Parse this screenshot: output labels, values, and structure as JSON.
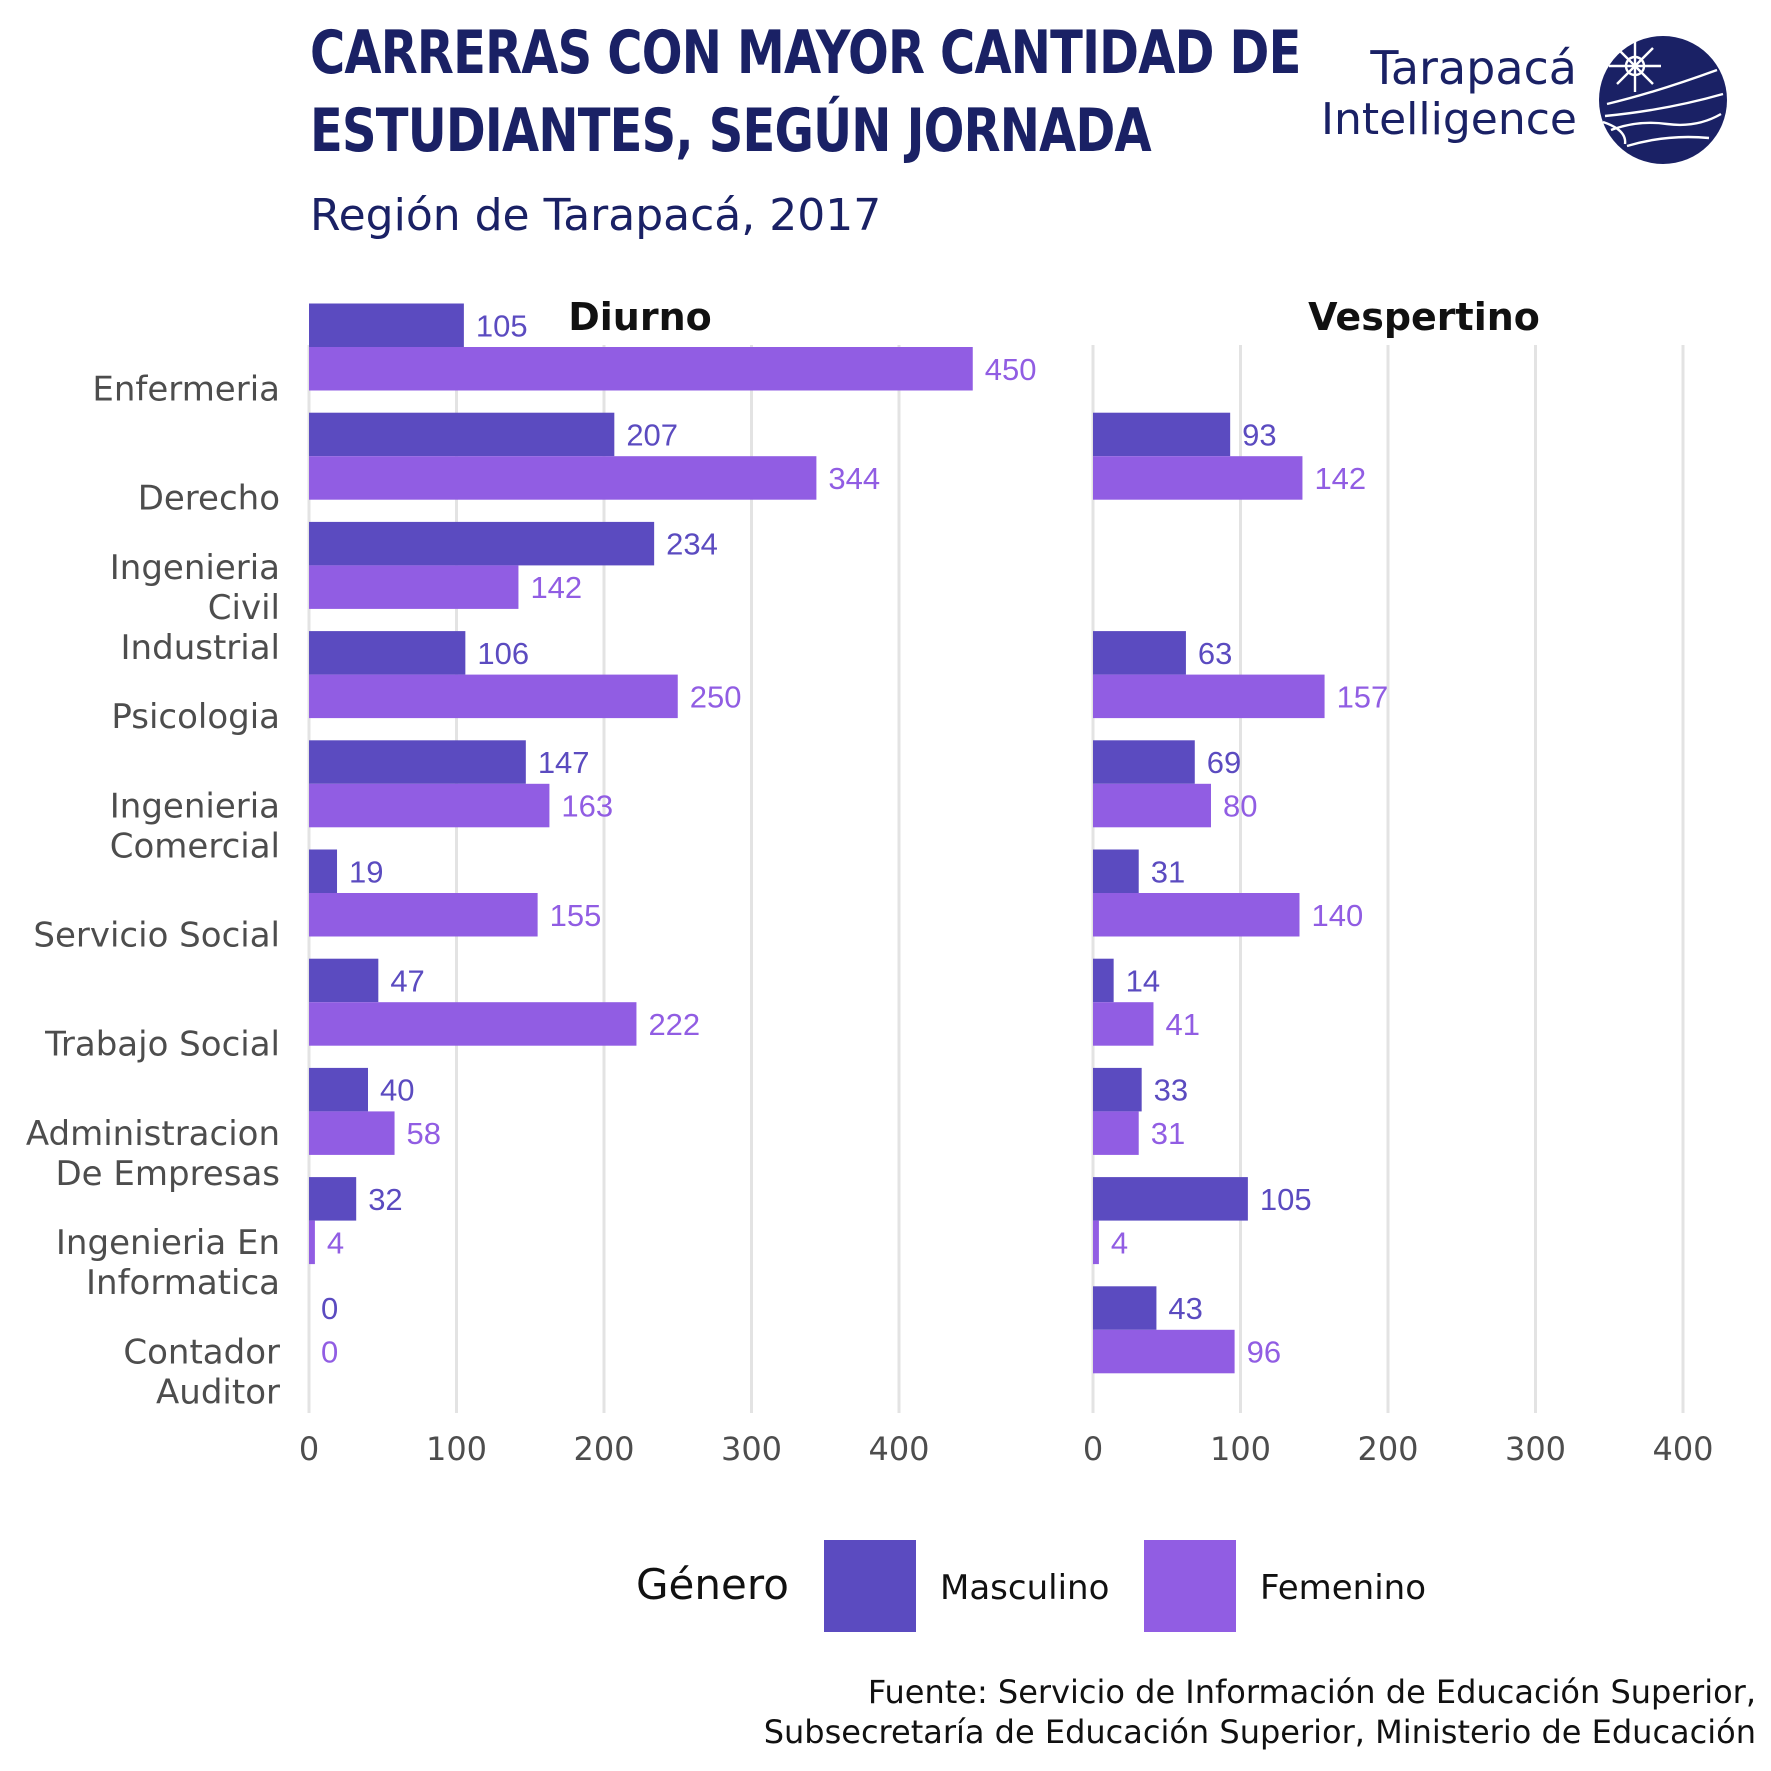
{
  "header": {
    "title_line_1": "CARRERAS CON MAYOR CANTIDAD DE",
    "title_line_2": "ESTUDIANTES, SEGÚN JORNADA",
    "subtitle": "Región de Tarapacá, 2017"
  },
  "brand": {
    "line_1": "Tarapacá",
    "line_2": "Intelligence",
    "color": "#1a2165"
  },
  "colors": {
    "masculino": "#5b4bc0",
    "femenino": "#915de3",
    "grid": "#e3e3e3",
    "axis_text": "#4d4d4d"
  },
  "legend": {
    "title": "Género",
    "items": [
      "Masculino",
      "Femenino"
    ]
  },
  "source": {
    "line_1": "Fuente: Servicio de Información de Educación Superior,",
    "line_2": "Subsecretaría de Educación Superior, Ministerio de Educación"
  },
  "chart_data": {
    "type": "bar",
    "orientation": "horizontal",
    "categories": [
      [
        "Enfermeria"
      ],
      [
        "Derecho"
      ],
      [
        "Ingenieria",
        "Civil",
        "Industrial"
      ],
      [
        "Psicologia"
      ],
      [
        "Ingenieria",
        "Comercial"
      ],
      [
        "Servicio Social"
      ],
      [
        "Trabajo Social"
      ],
      [
        "Administracion",
        "De Empresas"
      ],
      [
        "Ingenieria En",
        "Informatica"
      ],
      [
        "Contador",
        "Auditor"
      ]
    ],
    "xlim": [
      0,
      450
    ],
    "xticks": [
      0,
      100,
      200,
      300,
      400
    ],
    "grid": "vertical",
    "legend_position": "bottom",
    "panels": [
      {
        "title": "Diurno",
        "series": [
          {
            "name": "Masculino",
            "values": [
              105,
              207,
              234,
              106,
              147,
              19,
              47,
              40,
              32,
              0
            ]
          },
          {
            "name": "Femenino",
            "values": [
              450,
              344,
              142,
              250,
              163,
              155,
              222,
              58,
              4,
              0
            ]
          }
        ]
      },
      {
        "title": "Vespertino",
        "series": [
          {
            "name": "Masculino",
            "values": [
              null,
              93,
              null,
              63,
              69,
              31,
              14,
              33,
              105,
              43
            ]
          },
          {
            "name": "Femenino",
            "values": [
              null,
              142,
              null,
              157,
              80,
              140,
              41,
              31,
              4,
              96
            ]
          }
        ]
      }
    ]
  }
}
